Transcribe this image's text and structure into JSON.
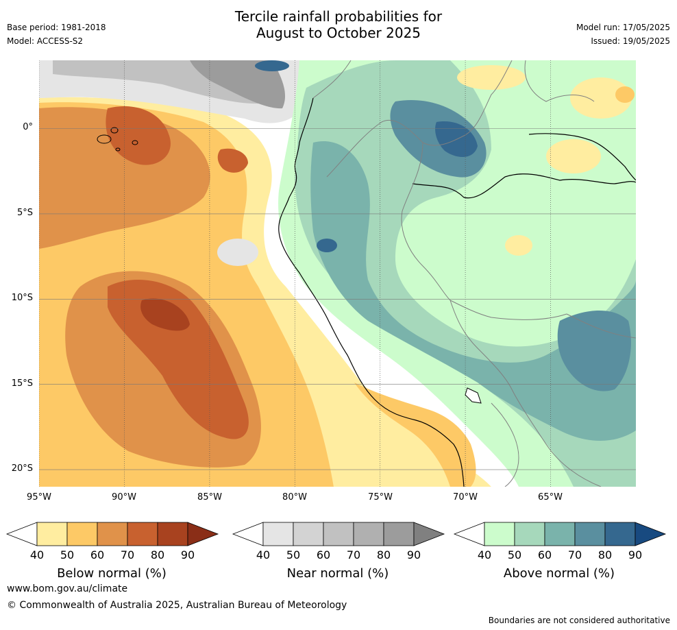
{
  "title_lines": [
    "Tercile rainfall probabilities for",
    "August to October 2025"
  ],
  "meta": {
    "base_period": "Base period: 1981-2018",
    "model": "Model: ACCESS-S2",
    "model_run": "Model run: 17/05/2025",
    "issued": "Issued: 19/05/2025"
  },
  "map": {
    "lon_range": [
      -95,
      -60
    ],
    "lat_range": [
      -21,
      4
    ],
    "lat_ticks": [
      "0°",
      "5°S",
      "10°S",
      "15°S",
      "20°S"
    ],
    "lon_ticks": [
      "95°W",
      "90°W",
      "85°W",
      "80°W",
      "75°W",
      "70°W",
      "65°W"
    ]
  },
  "colorbars": [
    {
      "label": "Below normal (%)",
      "ticks": [
        "40",
        "50",
        "60",
        "70",
        "80",
        "90"
      ],
      "colors": [
        "#ffeda0",
        "#fdc966",
        "#e0924a",
        "#c8612f",
        "#a8421f",
        "#8a2e17"
      ]
    },
    {
      "label": "Near normal (%)",
      "ticks": [
        "40",
        "50",
        "60",
        "70",
        "80",
        "90"
      ],
      "colors": [
        "#e5e5e5",
        "#d3d3d3",
        "#c1c1c1",
        "#b0b0b0",
        "#9c9c9c",
        "#808080"
      ]
    },
    {
      "label": "Above normal (%)",
      "ticks": [
        "40",
        "50",
        "60",
        "70",
        "80",
        "90"
      ],
      "colors": [
        "#ccfccc",
        "#a6d8bb",
        "#7ab3ab",
        "#5a8f9f",
        "#35688f",
        "#184a80"
      ]
    }
  ],
  "footer": {
    "website": "www.bom.gov.au/climate",
    "copyright": "© Commonwealth of Australia 2025, Australian Bureau of Meteorology",
    "disclaimer": "Boundaries are not considered authoritative"
  }
}
